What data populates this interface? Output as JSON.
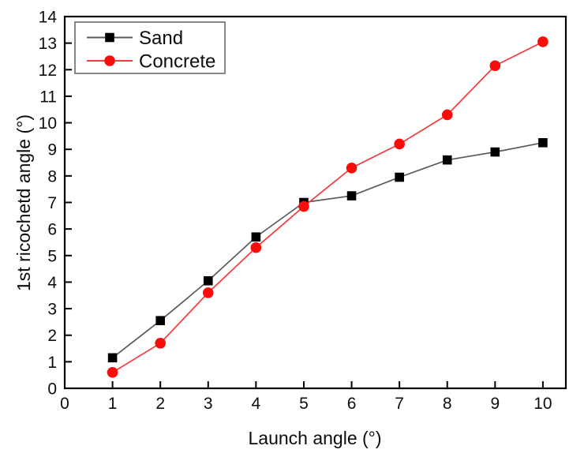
{
  "chart_data": {
    "type": "line",
    "title": "",
    "xlabel": "Launch angle (°)",
    "ylabel": "1st ricochetd angle (°)",
    "x": [
      1,
      2,
      3,
      4,
      5,
      6,
      7,
      8,
      9,
      10
    ],
    "series": [
      {
        "name": "Sand",
        "marker": "square",
        "marker_color": "#000000",
        "line_color": "#595959",
        "values": [
          1.15,
          2.55,
          4.05,
          5.7,
          7.0,
          7.25,
          7.95,
          8.6,
          8.9,
          9.25
        ]
      },
      {
        "name": "Concrete",
        "marker": "circle",
        "marker_color": "#f90d0b",
        "line_color": "#f8393b",
        "values": [
          0.6,
          1.7,
          3.6,
          5.3,
          6.85,
          8.3,
          9.2,
          10.3,
          12.15,
          13.05
        ]
      }
    ],
    "xlim": [
      0,
      10.48
    ],
    "ylim": [
      0,
      14
    ],
    "x_ticks": [
      0,
      1,
      2,
      3,
      4,
      5,
      6,
      7,
      8,
      9,
      10
    ],
    "y_ticks": [
      0,
      1,
      2,
      3,
      4,
      5,
      6,
      7,
      8,
      9,
      10,
      11,
      12,
      13,
      14
    ],
    "grid": false,
    "tick_direction": "in",
    "axis_color": "#000000",
    "legend": {
      "position": "top-left",
      "border_color": "#7a7a7a",
      "entries": [
        "Sand",
        "Concrete"
      ]
    }
  }
}
